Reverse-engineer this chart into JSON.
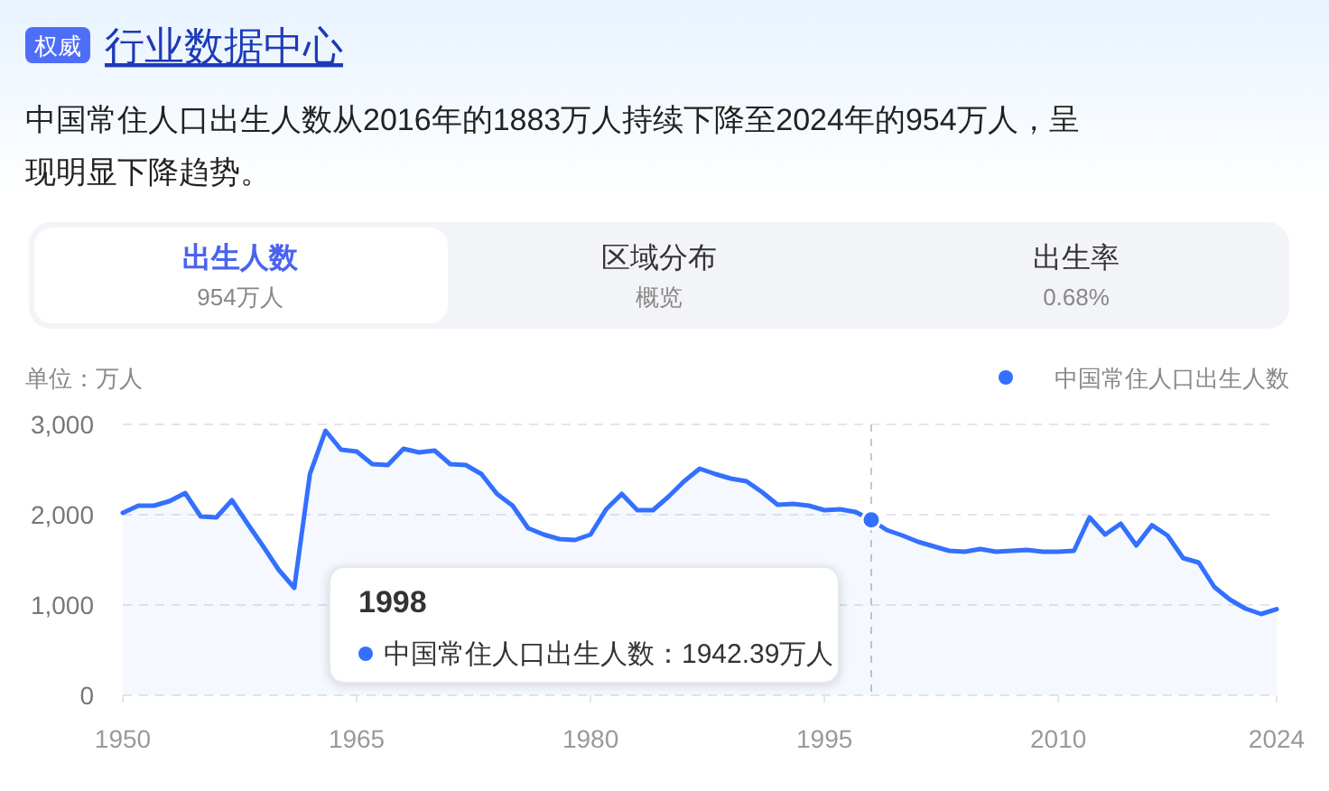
{
  "chart_data": {
    "type": "area",
    "title": "行业数据中心",
    "subtitle": "中国常住人口出生人数从2016年的1883万人持续下降至2024年的954万人，呈现明显下降趋势。",
    "ylabel": "单位：万人",
    "annotations": [
      "权威",
      "出生人数",
      "954万人",
      "区域分布",
      "概览",
      "出生率",
      "0.68%",
      "1998",
      "中国常住人口出生人数：1942.39万人"
    ],
    "x": [
      1950,
      1951,
      1952,
      1953,
      1954,
      1955,
      1956,
      1957,
      1958,
      1959,
      1960,
      1961,
      1962,
      1963,
      1964,
      1965,
      1966,
      1967,
      1968,
      1969,
      1970,
      1971,
      1972,
      1973,
      1974,
      1975,
      1976,
      1977,
      1978,
      1979,
      1980,
      1981,
      1982,
      1983,
      1984,
      1985,
      1986,
      1987,
      1988,
      1989,
      1990,
      1991,
      1992,
      1993,
      1994,
      1995,
      1996,
      1997,
      1998,
      1999,
      2000,
      2001,
      2002,
      2003,
      2004,
      2005,
      2006,
      2007,
      2008,
      2009,
      2010,
      2011,
      2012,
      2013,
      2014,
      2015,
      2016,
      2017,
      2018,
      2019,
      2020,
      2021,
      2022,
      2023,
      2024
    ],
    "series": [
      {
        "name": "中国常住人口出生人数",
        "color": "#3370ff",
        "values": [
          2020,
          2100,
          2100,
          2150,
          2240,
          1980,
          1970,
          2160,
          1900,
          1650,
          1390,
          1190,
          2450,
          2930,
          2720,
          2700,
          2560,
          2550,
          2730,
          2690,
          2710,
          2560,
          2550,
          2450,
          2230,
          2100,
          1850,
          1780,
          1730,
          1720,
          1780,
          2060,
          2230,
          2050,
          2050,
          2200,
          2370,
          2510,
          2450,
          2400,
          2370,
          2250,
          2110,
          2120,
          2100,
          2050,
          2060,
          2030,
          1942.39,
          1830,
          1770,
          1700,
          1650,
          1600,
          1590,
          1620,
          1590,
          1600,
          1610,
          1590,
          1590,
          1600,
          1970,
          1780,
          1900,
          1660,
          1883,
          1770,
          1520,
          1470,
          1200,
          1060,
          960,
          900,
          954
        ]
      }
    ],
    "xlim": [
      1950,
      2024
    ],
    "xticks": [
      1950,
      1965,
      1980,
      1995,
      2010,
      2024
    ],
    "ylim": [
      0,
      3000
    ],
    "yticks": [
      {
        "value": 0,
        "label": "0"
      },
      {
        "value": 1000,
        "label": "1,000"
      },
      {
        "value": 2000,
        "label": "2,000"
      },
      {
        "value": 3000,
        "label": "3,000"
      }
    ],
    "grid": "y",
    "legend": "top right",
    "marker": "none",
    "line_style": "solid",
    "ref_lines": [
      {
        "axis": "x",
        "value": 1998,
        "label": null,
        "color": "#c4c7cf",
        "line_style": "dashed"
      }
    ]
  }
}
